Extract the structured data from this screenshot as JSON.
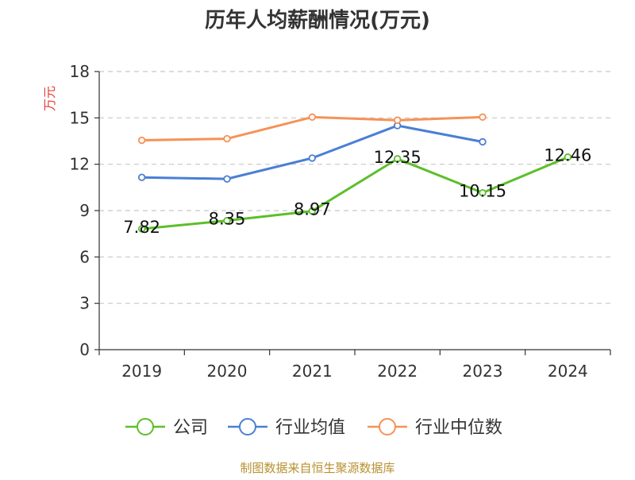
{
  "chart_data": {
    "type": "line",
    "title": "历年人均薪酬情况(万元)",
    "ylabel": "万元",
    "xlabel": "",
    "categories": [
      "2019",
      "2020",
      "2021",
      "2022",
      "2023",
      "2024"
    ],
    "ylim": [
      0,
      18
    ],
    "yticks": [
      0,
      3,
      6,
      9,
      12,
      15,
      18
    ],
    "grid": true,
    "legend_position": "bottom",
    "series": [
      {
        "name": "公司",
        "color": "#5cbf2a",
        "values": [
          7.82,
          8.35,
          8.97,
          12.35,
          10.15,
          12.46
        ],
        "labels": [
          "7.82",
          "8.35",
          "8.97",
          "12.35",
          "10.15",
          "12.46"
        ]
      },
      {
        "name": "行业均值",
        "color": "#4a7fd4",
        "values": [
          11.15,
          11.05,
          12.4,
          14.5,
          13.45,
          null
        ]
      },
      {
        "name": "行业中位数",
        "color": "#f59257",
        "values": [
          13.55,
          13.65,
          15.05,
          14.85,
          15.05,
          null
        ]
      }
    ]
  },
  "source_text": "制图数据来自恒生聚源数据库"
}
